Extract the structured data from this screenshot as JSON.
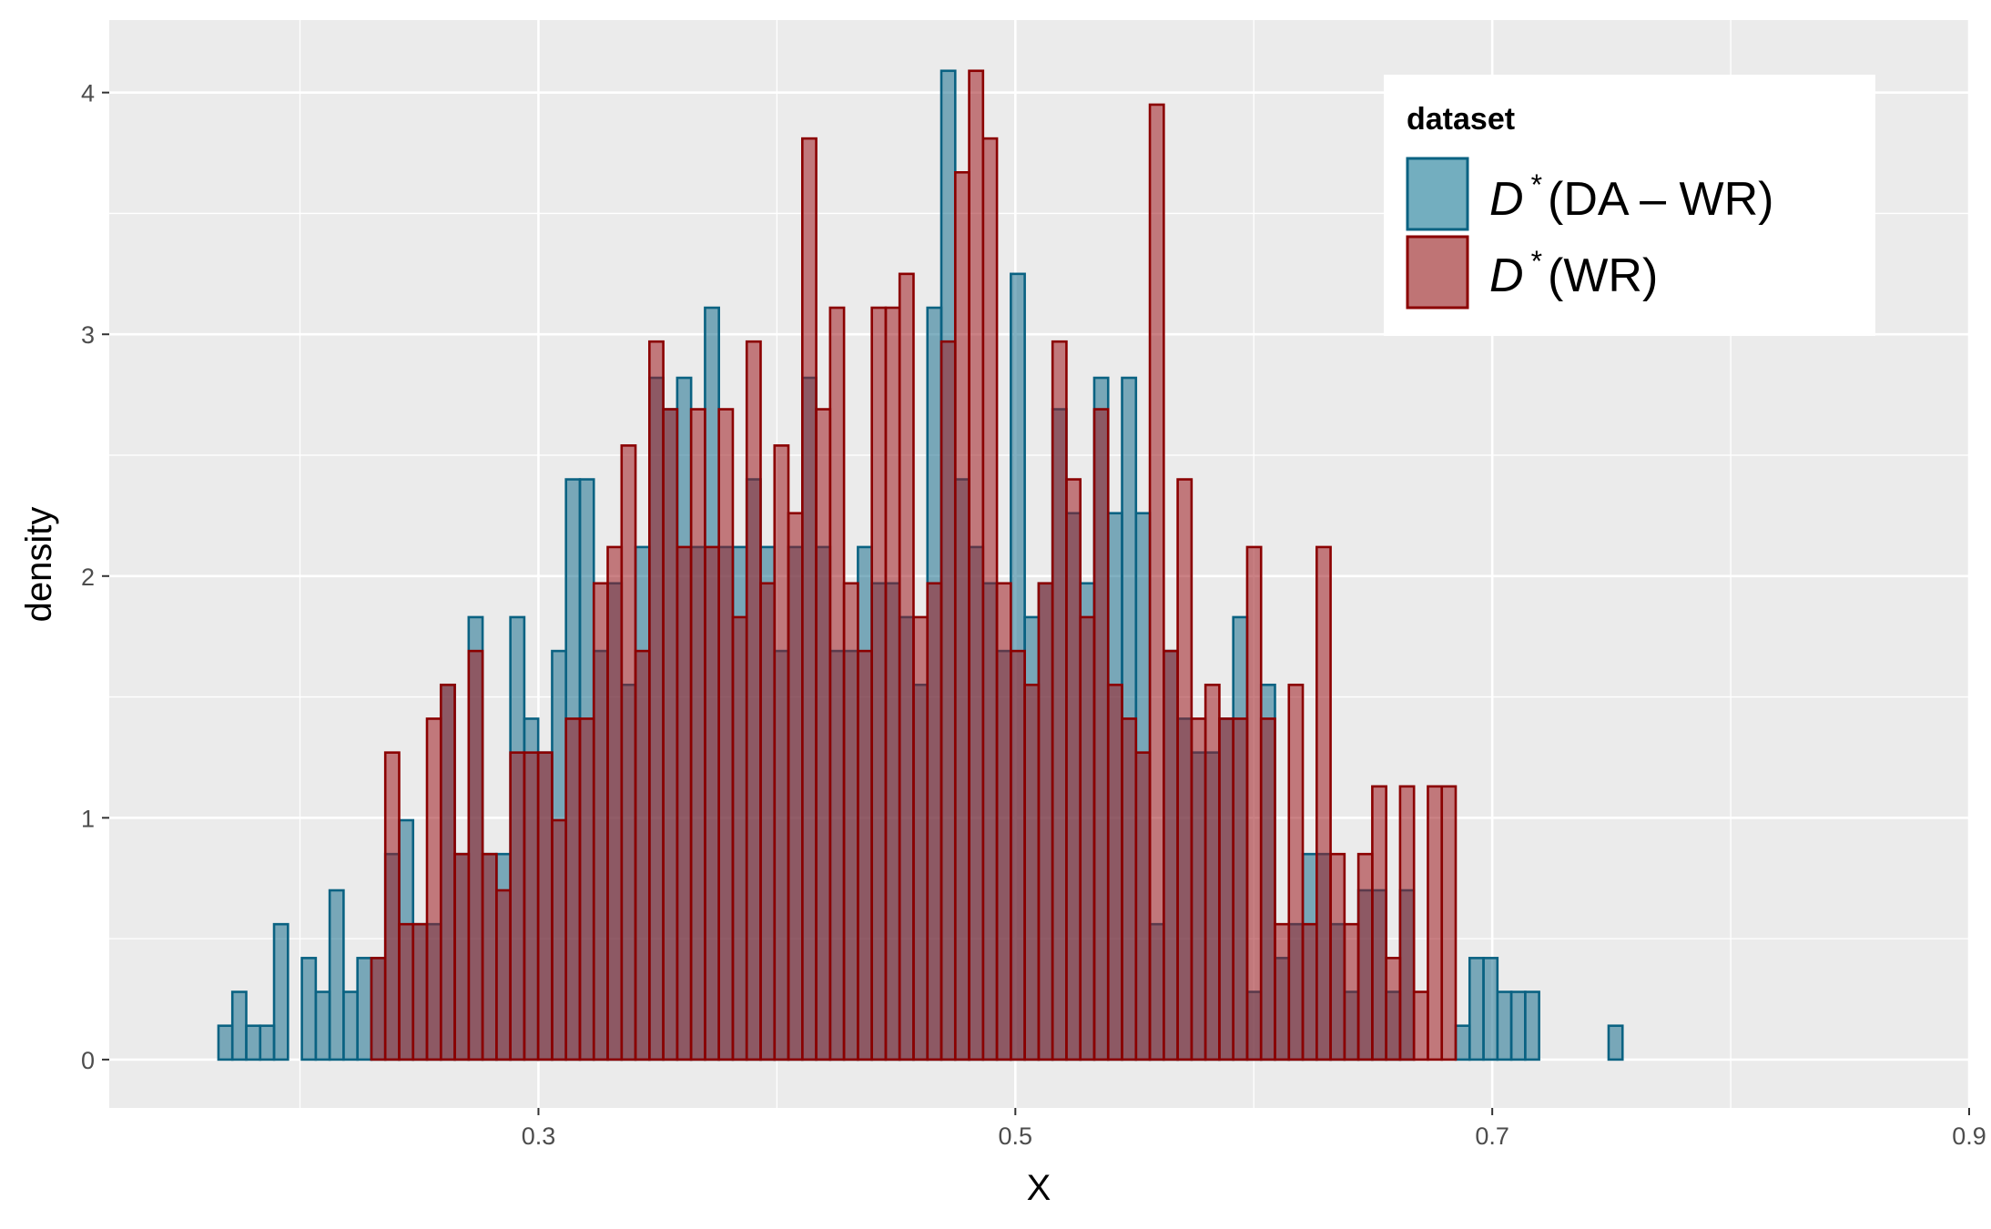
{
  "chart_data": {
    "type": "bar",
    "subtype": "overlaid-histogram",
    "xlabel": "X",
    "ylabel": "density",
    "xlim": [
      0.12,
      0.9
    ],
    "ylim": [
      -0.2,
      4.3
    ],
    "binwidth": 0.00583,
    "x_ticks": [
      0.3,
      0.5,
      0.7,
      0.9
    ],
    "x_tick_labels": [
      "0.3",
      "0.5",
      "0.7",
      "0.9"
    ],
    "y_ticks": [
      0,
      1,
      2,
      3,
      4
    ],
    "y_tick_labels": [
      "0",
      "1",
      "2",
      "3",
      "4"
    ],
    "grid": true,
    "legend": {
      "title": "dataset",
      "position": "top-right",
      "entries": [
        {
          "main": "D",
          "sup": "*",
          "suffix": "(DA – WR)",
          "color_fill": "#4a8ea5",
          "color_border": "#0a6282"
        },
        {
          "main": "D",
          "sup": "*",
          "suffix": "(WR)",
          "color_fill": "#a63c40",
          "color_border": "#8b0000"
        }
      ]
    },
    "x_start": 0.1658,
    "series": [
      {
        "name": "D*(DA – WR)",
        "fill": "#1a6f8e",
        "stroke": "#0a6282",
        "opacity": 0.55,
        "values": [
          0.14,
          0.28,
          0.14,
          0.14,
          0.56,
          0,
          0.42,
          0.28,
          0.7,
          0.28,
          0.42,
          0.42,
          0.85,
          0.99,
          0.56,
          0.56,
          1.55,
          0.85,
          1.83,
          0.85,
          0.85,
          1.83,
          1.41,
          1.27,
          1.69,
          2.4,
          2.4,
          1.69,
          1.97,
          1.55,
          2.12,
          2.82,
          2.69,
          2.82,
          2.12,
          3.11,
          2.12,
          2.12,
          2.4,
          2.12,
          1.69,
          2.12,
          2.82,
          2.12,
          1.69,
          1.69,
          2.12,
          1.97,
          1.97,
          1.83,
          1.55,
          3.11,
          4.09,
          2.4,
          2.12,
          1.97,
          1.69,
          3.25,
          1.83,
          1.97,
          2.69,
          2.26,
          1.97,
          2.82,
          2.26,
          2.82,
          2.26,
          0.56,
          1.69,
          1.41,
          1.27,
          1.27,
          1.41,
          1.83,
          0.28,
          1.55,
          0.42,
          0.56,
          0.85,
          0.85,
          0.56,
          0.28,
          0.7,
          0.7,
          0.28,
          0.7,
          0,
          0,
          0,
          0.14,
          0.42,
          0.42,
          0.28,
          0.28,
          0.28,
          0,
          0,
          0,
          0,
          0,
          0.14
        ]
      },
      {
        "name": "D*(WR)",
        "fill": "#9e1a1f",
        "stroke": "#8b0000",
        "opacity": 0.55,
        "values": [
          0,
          0,
          0,
          0,
          0,
          0,
          0,
          0,
          0,
          0,
          0,
          0.42,
          1.27,
          0.56,
          0.56,
          1.41,
          1.55,
          0.85,
          1.69,
          0.85,
          0.7,
          1.27,
          1.27,
          1.27,
          0.99,
          1.41,
          1.41,
          1.97,
          2.12,
          2.54,
          1.69,
          2.97,
          2.69,
          2.12,
          2.69,
          2.12,
          2.69,
          1.83,
          2.97,
          1.97,
          2.54,
          2.26,
          3.81,
          2.69,
          3.11,
          1.97,
          1.69,
          3.11,
          3.11,
          3.25,
          1.83,
          1.97,
          2.97,
          3.67,
          4.09,
          3.81,
          1.97,
          1.69,
          1.55,
          1.97,
          2.97,
          2.4,
          1.83,
          2.69,
          1.55,
          1.41,
          1.27,
          3.95,
          1.69,
          2.4,
          1.41,
          1.55,
          1.41,
          1.41,
          2.12,
          1.41,
          0.56,
          1.55,
          0.56,
          2.12,
          0.85,
          0.56,
          0.85,
          1.13,
          0.42,
          1.13,
          0.28,
          1.13,
          1.13,
          0,
          0,
          0,
          0,
          0,
          0,
          0,
          0,
          0,
          0,
          0,
          0
        ]
      }
    ]
  }
}
